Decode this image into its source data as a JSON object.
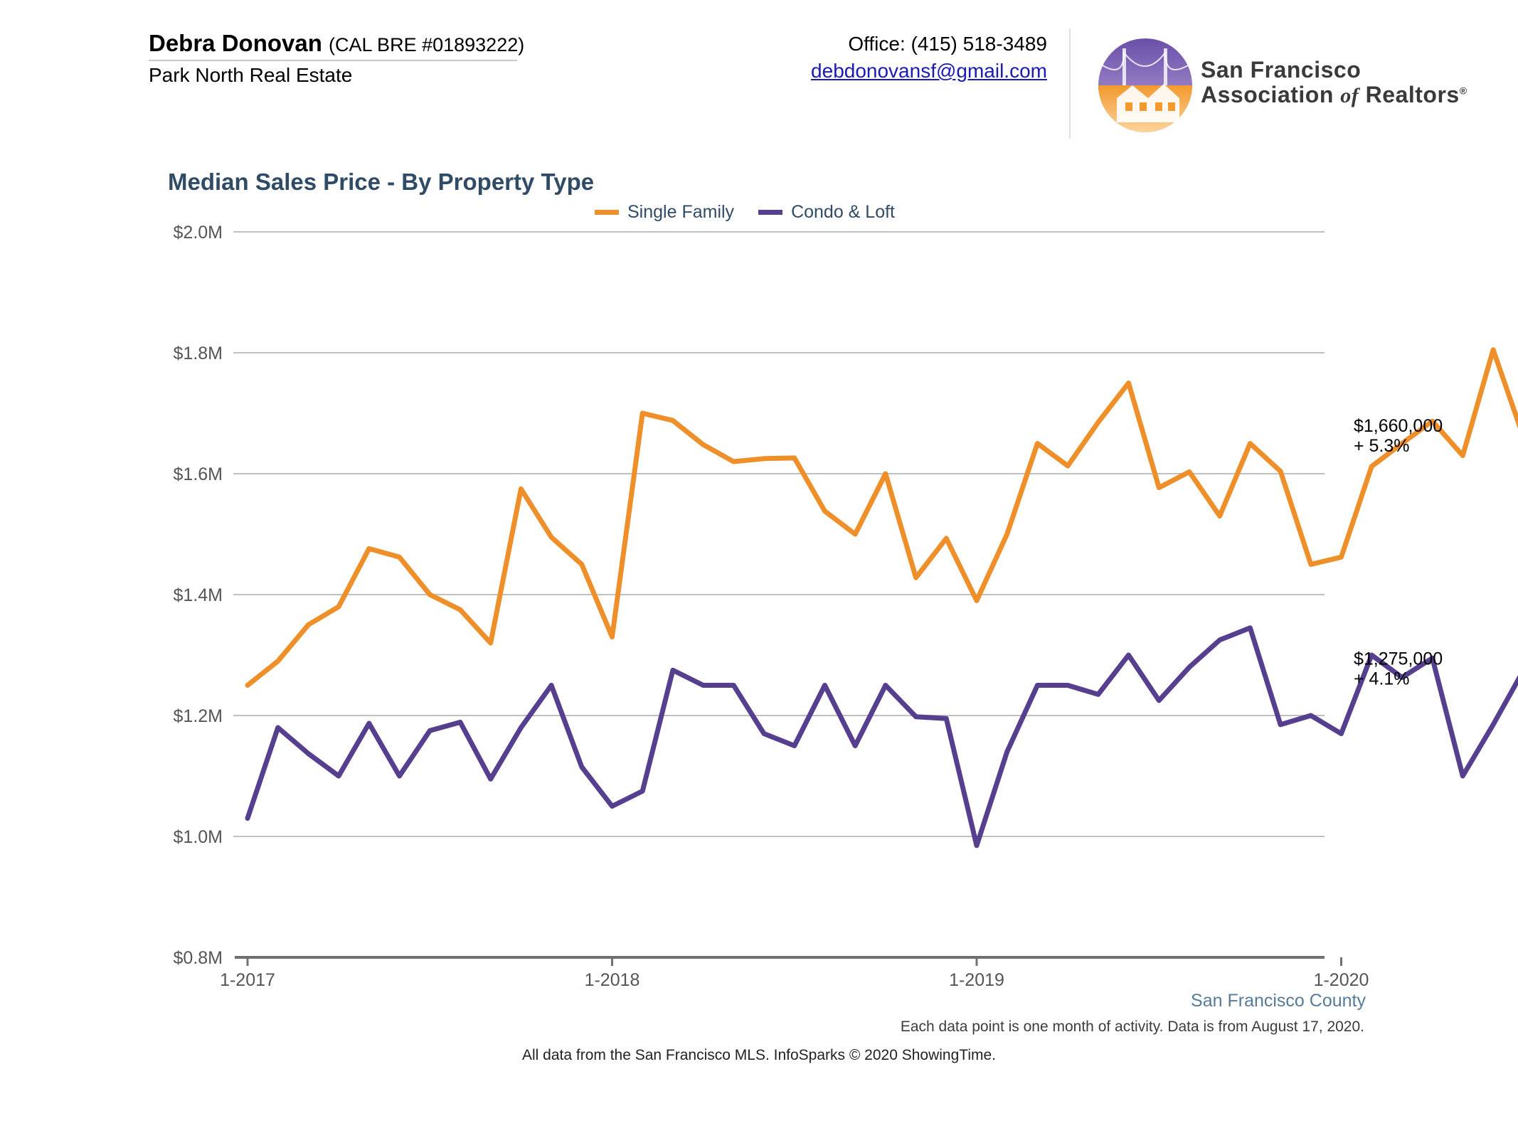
{
  "header": {
    "agent_name": "Debra Donovan",
    "agent_license": "(CAL BRE #01893222)",
    "agent_company": "Park North Real Estate",
    "office_phone": "Office: (415) 518-3489",
    "email": "debdonovansf@gmail.com",
    "org_name_line1": "San Francisco",
    "org_name_line2_a": "Association",
    "org_name_line2_of": "of",
    "org_name_line2_b": "Realtors",
    "org_mark": "®"
  },
  "colors": {
    "single_family": "#ee8f2a",
    "condo_loft": "#553f8e",
    "title": "#2f4b66",
    "gridline": "#c0c0c0",
    "axis": "#707070"
  },
  "chart_data": {
    "type": "line",
    "title": "Median Sales Price - By Property Type",
    "xlabel": "",
    "ylabel": "",
    "ylim": [
      800000,
      2000000
    ],
    "yticks": [
      800000,
      1000000,
      1200000,
      1400000,
      1600000,
      1800000,
      2000000
    ],
    "ytick_labels": [
      "$0.8M",
      "$1.0M",
      "$1.2M",
      "$1.4M",
      "$1.6M",
      "$1.8M",
      "$2.0M"
    ],
    "xtick_labels": [
      "1-2017",
      "1-2018",
      "1-2019",
      "1-2020"
    ],
    "xtick_index": [
      0,
      12,
      24,
      36
    ],
    "x": [
      "1-2017",
      "2-2017",
      "3-2017",
      "4-2017",
      "5-2017",
      "6-2017",
      "7-2017",
      "8-2017",
      "9-2017",
      "10-2017",
      "11-2017",
      "12-2017",
      "1-2018",
      "2-2018",
      "3-2018",
      "4-2018",
      "5-2018",
      "6-2018",
      "7-2018",
      "8-2018",
      "9-2018",
      "10-2018",
      "11-2018",
      "12-2018",
      "1-2019",
      "2-2019",
      "3-2019",
      "4-2019",
      "5-2019",
      "6-2019",
      "7-2019",
      "8-2019",
      "9-2019",
      "10-2019",
      "11-2019",
      "12-2019",
      "1-2020",
      "2-2020",
      "3-2020",
      "4-2020",
      "5-2020",
      "6-2020",
      "7-2020"
    ],
    "grid": true,
    "legend_position": "top-center",
    "series": [
      {
        "name": "Single Family",
        "values": [
          1250000,
          1290000,
          1350000,
          1380000,
          1476000,
          1462000,
          1400000,
          1375000,
          1320000,
          1575000,
          1495000,
          1450000,
          1330000,
          1700000,
          1688000,
          1648000,
          1620000,
          1625000,
          1626000,
          1538000,
          1500000,
          1600000,
          1428000,
          1493000,
          1390000,
          1500000,
          1650000,
          1613000,
          1685000,
          1750000,
          1577000,
          1603000,
          1530000,
          1650000,
          1604000,
          1450000,
          1462000,
          1612000,
          1650000,
          1687000,
          1630000,
          1805000,
          1660000
        ],
        "end_label_value": "$1,660,000",
        "end_label_change": "+ 5.3%"
      },
      {
        "name": "Condo & Loft",
        "values": [
          1030000,
          1180000,
          1137000,
          1100000,
          1187000,
          1100000,
          1175000,
          1189000,
          1095000,
          1180000,
          1250000,
          1115000,
          1050000,
          1075000,
          1275000,
          1250000,
          1250000,
          1170000,
          1150000,
          1250000,
          1150000,
          1250000,
          1198000,
          1195000,
          985000,
          1140000,
          1250000,
          1250000,
          1235000,
          1300000,
          1225000,
          1280000,
          1325000,
          1345000,
          1185000,
          1200000,
          1170000,
          1300000,
          1263000,
          1295000,
          1100000,
          1185000,
          1275000
        ],
        "end_label_value": "$1,275,000",
        "end_label_change": "+ 4.1%"
      }
    ]
  },
  "footer": {
    "region": "San Francisco County",
    "note": "Each data point is one month of activity. Data is from August 17, 2020.",
    "source": "All data from the San Francisco MLS. InfoSparks © 2020 ShowingTime."
  }
}
